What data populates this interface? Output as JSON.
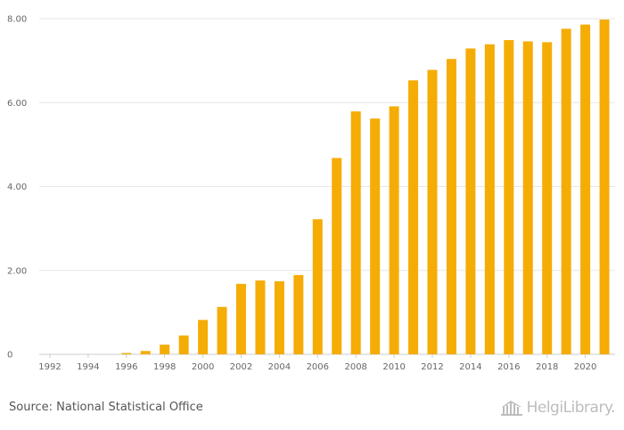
{
  "chart_data": {
    "type": "bar",
    "title": "",
    "xlabel": "",
    "ylabel": "",
    "color": "#F5AC05",
    "categories": [
      "1992",
      "1993",
      "1994",
      "1995",
      "1996",
      "1997",
      "1998",
      "1999",
      "2000",
      "2001",
      "2002",
      "2003",
      "2004",
      "2005",
      "2006",
      "2007",
      "2008",
      "2009",
      "2010",
      "2011",
      "2012",
      "2013",
      "2014",
      "2015",
      "2016",
      "2017",
      "2018",
      "2019",
      "2020",
      "2021"
    ],
    "values": [
      0,
      0,
      0,
      0,
      0.03,
      0.08,
      0.23,
      0.45,
      0.82,
      1.13,
      1.68,
      1.76,
      1.74,
      1.89,
      3.22,
      4.68,
      5.79,
      5.62,
      5.91,
      6.53,
      6.78,
      7.04,
      7.29,
      7.39,
      7.49,
      7.46,
      7.44,
      7.76,
      7.86,
      7.98
    ],
    "ylim": [
      0,
      8
    ],
    "y_ticks": [
      {
        "value": 0,
        "label": "0"
      },
      {
        "value": 2,
        "label": "2.00"
      },
      {
        "value": 4,
        "label": "4.00"
      },
      {
        "value": 6,
        "label": "6.00"
      },
      {
        "value": 8,
        "label": "8.00"
      }
    ],
    "x_tick_labels": [
      "1992",
      "1994",
      "1996",
      "1998",
      "2000",
      "2002",
      "2004",
      "2006",
      "2008",
      "2010",
      "2012",
      "2014",
      "2016",
      "2018",
      "2020"
    ],
    "grid": true,
    "legend": "none"
  },
  "footer": {
    "source": "Source: National Statistical Office",
    "logo_text": "HelgiLibrary."
  }
}
